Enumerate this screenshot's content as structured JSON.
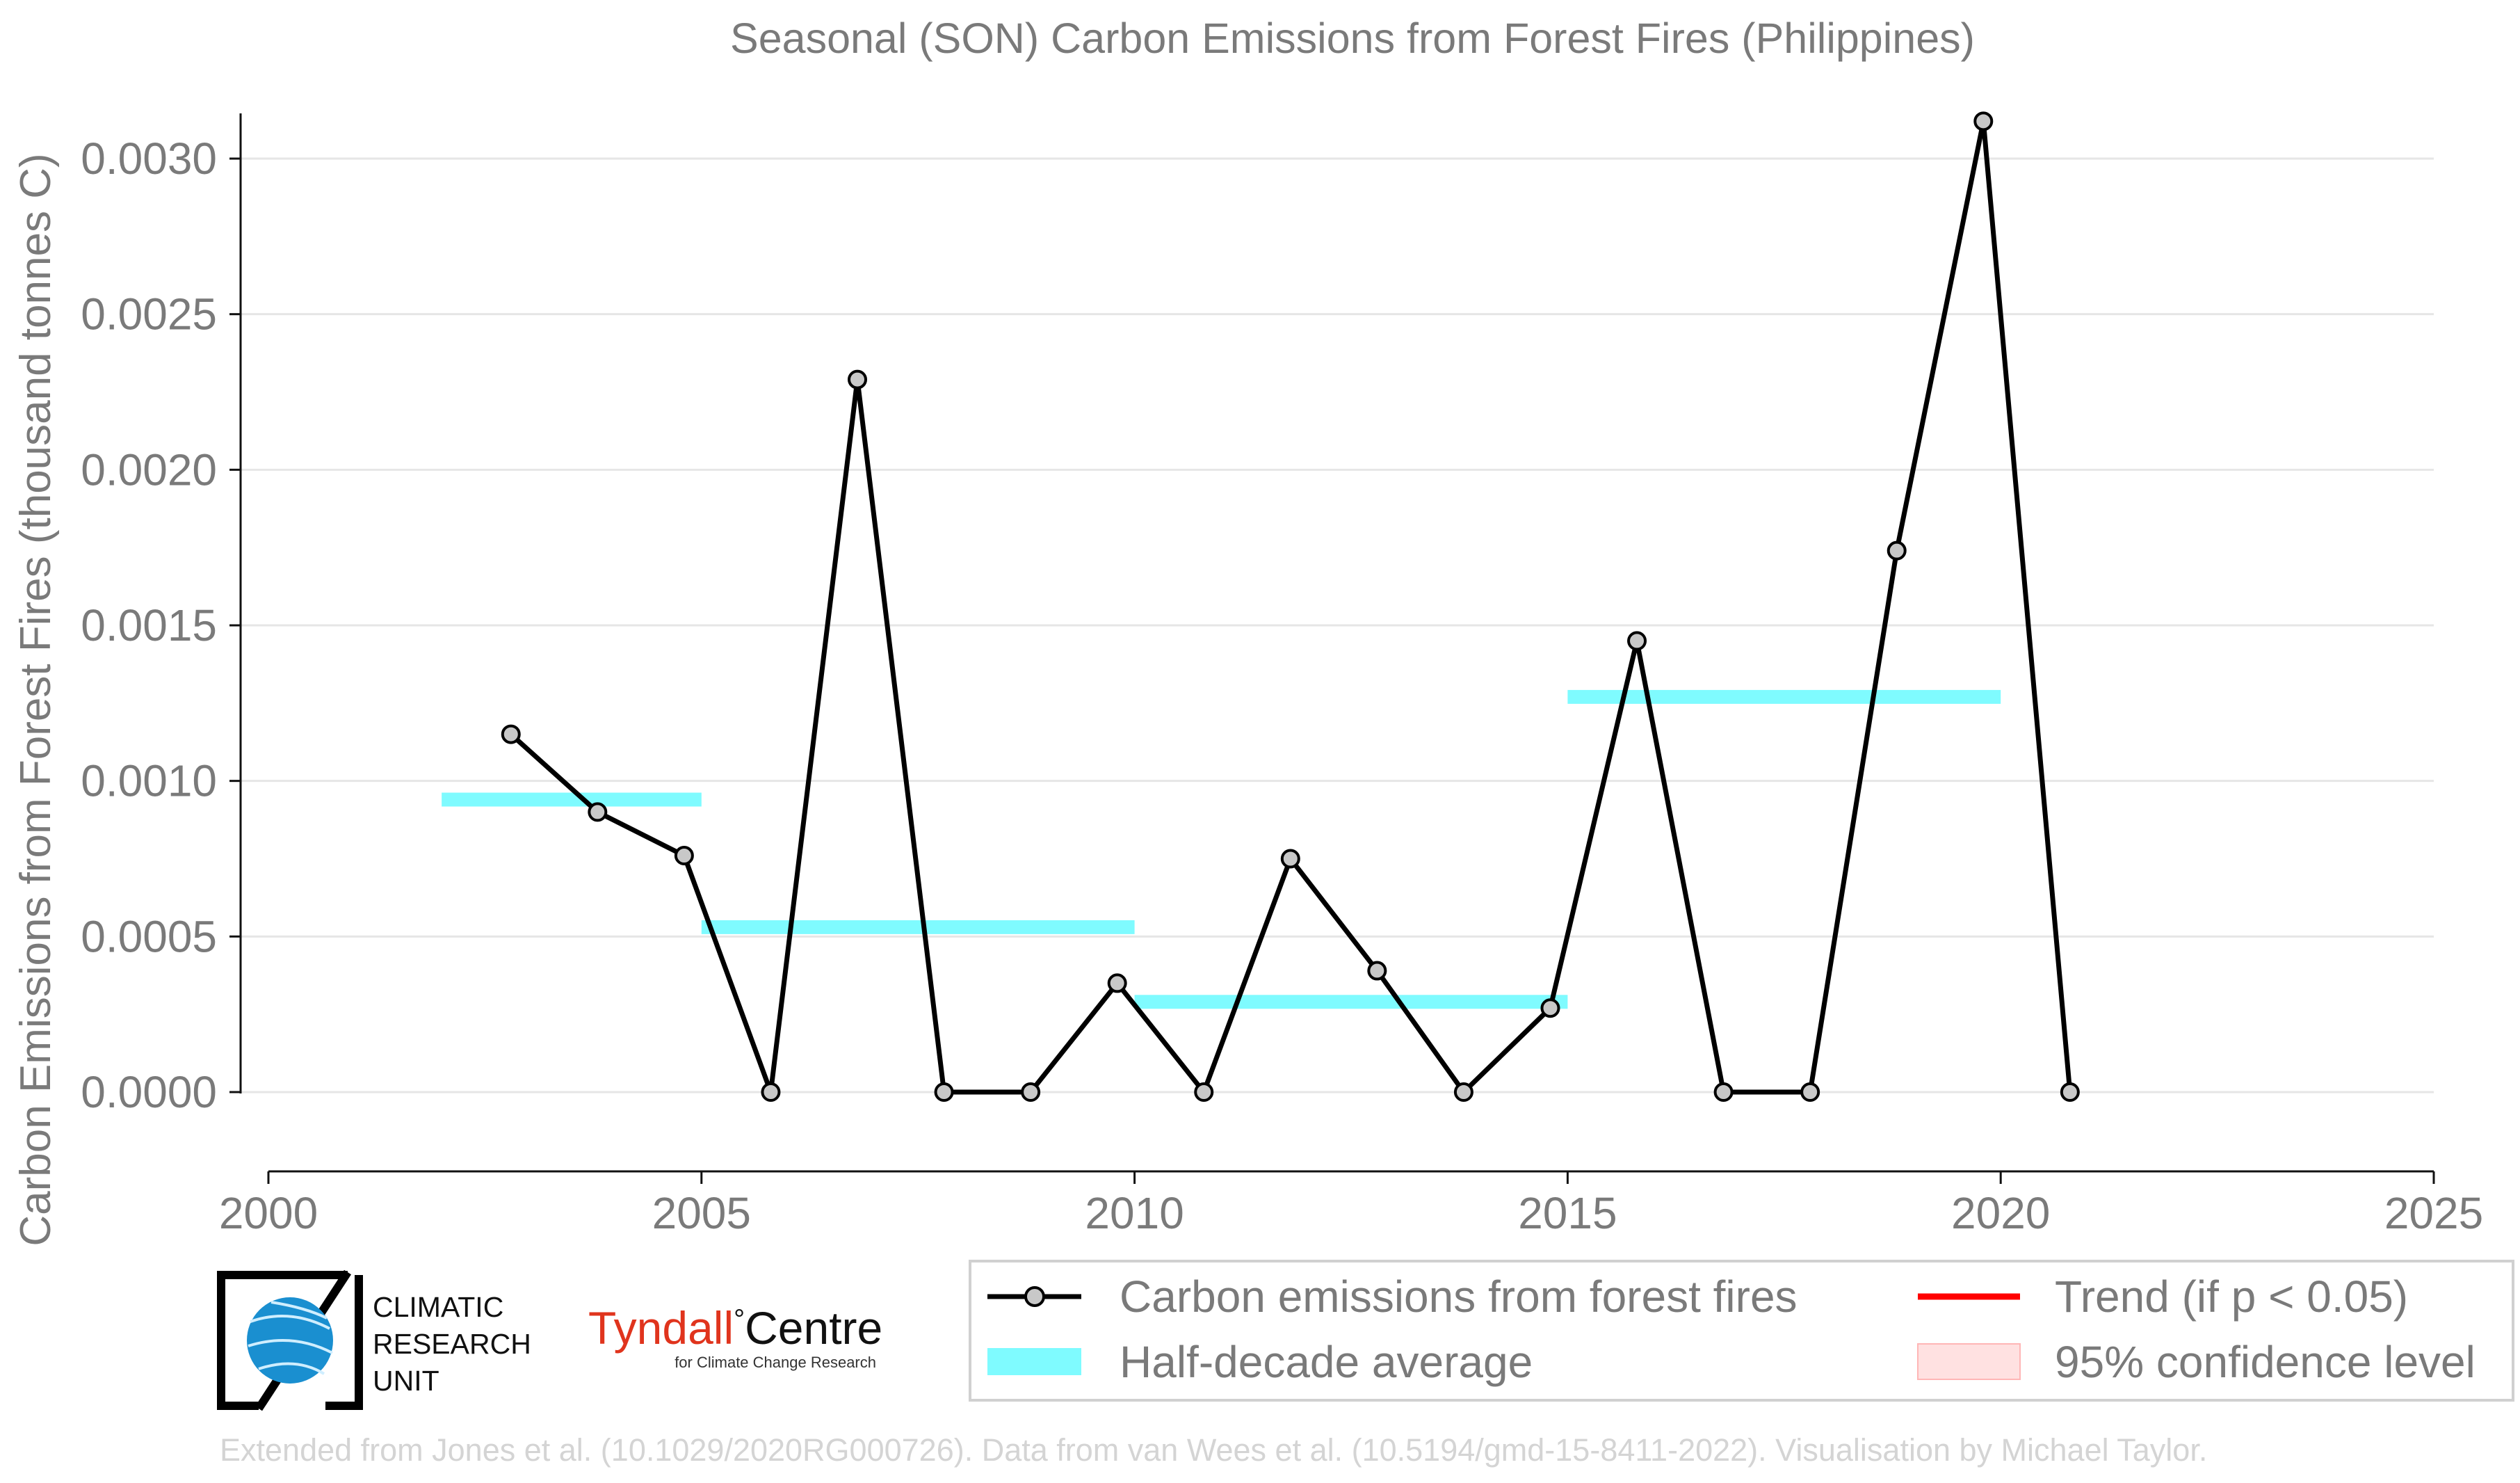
{
  "chart_data": {
    "type": "line",
    "title": "Seasonal (SON) Carbon Emissions from Forest Fires (Philippines)",
    "xlabel": "",
    "ylabel": "Carbon Emissions from Forest Fires (thousand tonnes C)",
    "xlim": [
      2000,
      2025
    ],
    "ylim": [
      -0.0003,
      0.0032
    ],
    "x_ticks": [
      2000,
      2005,
      2010,
      2015,
      2020,
      2025
    ],
    "x_tick_labels": [
      "2000",
      "2005",
      "2010",
      "2015",
      "2020",
      "2025"
    ],
    "y_ticks": [
      0.0,
      0.0005,
      0.001,
      0.0015,
      0.002,
      0.0025,
      0.003
    ],
    "y_tick_labels": [
      "0.0000",
      "0.0005",
      "0.0010",
      "0.0015",
      "0.0020",
      "0.0025",
      "0.0030"
    ],
    "grid": "horizontal",
    "series": [
      {
        "name": "Carbon emissions from forest fires",
        "color": "#000000",
        "marker_fill": "#c8c8c8",
        "x": [
          2002.8,
          2003.8,
          2004.8,
          2005.8,
          2006.8,
          2007.8,
          2008.8,
          2009.8,
          2010.8,
          2011.8,
          2012.8,
          2013.8,
          2014.8,
          2015.8,
          2016.8,
          2017.8,
          2018.8,
          2019.8,
          2020.8
        ],
        "y": [
          0.00115,
          0.0009,
          0.00076,
          0.0,
          0.00229,
          0.0,
          0.0,
          0.00035,
          0.0,
          0.00075,
          0.00039,
          0.0,
          0.00027,
          0.00145,
          0.0,
          0.0,
          0.00174,
          0.00312,
          0.0
        ]
      }
    ],
    "half_decade_average": {
      "name": "Half-decade average",
      "color": "#7ffbff",
      "segments": [
        {
          "x0": 2002,
          "x1": 2005,
          "value": 0.00094
        },
        {
          "x0": 2005,
          "x1": 2010,
          "value": 0.00053
        },
        {
          "x0": 2010,
          "x1": 2015,
          "value": 0.00029
        },
        {
          "x0": 2015,
          "x1": 2020,
          "value": 0.00127
        }
      ]
    },
    "legend": {
      "position": "bottom-right",
      "entries": [
        {
          "label": "Carbon emissions from forest fires",
          "kind": "line-marker",
          "color": "#000000"
        },
        {
          "label": "Trend (if p < 0.05)",
          "kind": "line",
          "color": "#ff0000"
        },
        {
          "label": "Half-decade average",
          "kind": "band",
          "color": "#7ffbff"
        },
        {
          "label": "95% confidence level",
          "kind": "patch",
          "color": "#ffe1e1"
        }
      ]
    },
    "credit": "Extended from Jones et al. (10.1029/2020RG000726). Data from van Wees et al. (10.5194/gmd-15-8411-2022). Visualisation by Michael Taylor."
  },
  "logos": {
    "cru_lines": [
      "CLIMATIC",
      "RESEARCH",
      "UNIT"
    ],
    "tyndall_part1": "Tyndall",
    "tyndall_degree": "°",
    "tyndall_part2": "Centre",
    "tyndall_sub": "for Climate Change Research",
    "tyndall_red": "#e0341d"
  }
}
